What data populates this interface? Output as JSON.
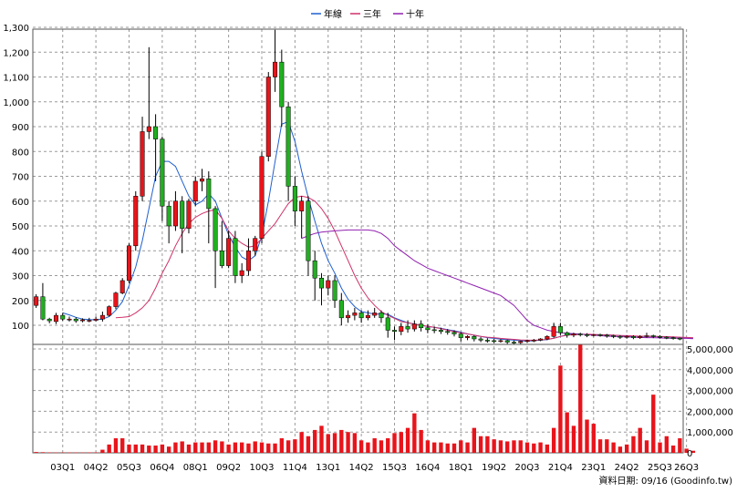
{
  "legend": [
    {
      "name": "年線",
      "color": "#1f5fd0"
    },
    {
      "name": "三年",
      "color": "#d0306a"
    },
    {
      "name": "十年",
      "color": "#9020b0"
    }
  ],
  "footer": "資料日期: 09/16  (Goodinfo.tw)",
  "colors": {
    "up": "#e8141b",
    "down": "#20b020",
    "wick": "#000000",
    "volume": "#e8141b"
  },
  "chart_data": {
    "type": "candlestick",
    "price_axis": {
      "ticks": [
        100,
        200,
        300,
        400,
        500,
        600,
        700,
        800,
        900,
        1000,
        1100,
        1200,
        1300
      ],
      "tick_labels": [
        "100",
        "200",
        "300",
        "400",
        "500",
        "600",
        "700",
        "800",
        "900",
        "1,000",
        "1,100",
        "1,200",
        "1,300"
      ]
    },
    "volume_axis": {
      "ticks": [
        0,
        1000000,
        2000000,
        3000000,
        4000000,
        5000000
      ],
      "tick_labels": [
        "0",
        "1,000,000",
        "2,000,000",
        "3,000,000",
        "4,000,000",
        "5,000,000"
      ]
    },
    "x_labels": [
      {
        "label": "03Q1",
        "index": 4
      },
      {
        "label": "04Q2",
        "index": 9
      },
      {
        "label": "05Q3",
        "index": 14
      },
      {
        "label": "06Q4",
        "index": 19
      },
      {
        "label": "08Q1",
        "index": 24
      },
      {
        "label": "09Q2",
        "index": 29
      },
      {
        "label": "10Q3",
        "index": 34
      },
      {
        "label": "11Q4",
        "index": 39
      },
      {
        "label": "13Q1",
        "index": 44
      },
      {
        "label": "14Q2",
        "index": 49
      },
      {
        "label": "15Q3",
        "index": 54
      },
      {
        "label": "16Q4",
        "index": 59
      },
      {
        "label": "18Q1",
        "index": 64
      },
      {
        "label": "19Q2",
        "index": 69
      },
      {
        "label": "20Q3",
        "index": 74
      },
      {
        "label": "21Q4",
        "index": 79
      },
      {
        "label": "23Q1",
        "index": 84
      },
      {
        "label": "24Q2",
        "index": 89
      },
      {
        "label": "25Q3",
        "index": 94
      },
      {
        "label": "26Q3",
        "index": 98
      }
    ],
    "candles": [
      [
        180,
        215,
        225,
        170
      ],
      [
        215,
        125,
        270,
        120
      ],
      [
        125,
        118,
        130,
        108
      ],
      [
        115,
        140,
        150,
        105
      ],
      [
        140,
        125,
        150,
        118
      ],
      [
        125,
        125,
        135,
        115
      ],
      [
        125,
        118,
        132,
        110
      ],
      [
        118,
        122,
        128,
        112
      ],
      [
        120,
        120,
        130,
        112
      ],
      [
        120,
        125,
        135,
        115
      ],
      [
        125,
        140,
        155,
        115
      ],
      [
        140,
        175,
        180,
        135
      ],
      [
        175,
        230,
        235,
        165
      ],
      [
        230,
        280,
        290,
        225
      ],
      [
        280,
        420,
        430,
        270
      ],
      [
        420,
        620,
        640,
        400
      ],
      [
        620,
        880,
        940,
        600
      ],
      [
        880,
        900,
        1220,
        850
      ],
      [
        900,
        850,
        950,
        680
      ],
      [
        850,
        580,
        860,
        520
      ],
      [
        580,
        500,
        600,
        430
      ],
      [
        500,
        600,
        640,
        480
      ],
      [
        600,
        490,
        620,
        390
      ],
      [
        490,
        600,
        610,
        470
      ],
      [
        600,
        680,
        700,
        580
      ],
      [
        680,
        690,
        730,
        640
      ],
      [
        690,
        570,
        720,
        430
      ],
      [
        570,
        400,
        580,
        250
      ],
      [
        400,
        340,
        520,
        330
      ],
      [
        340,
        450,
        480,
        330
      ],
      [
        450,
        300,
        480,
        270
      ],
      [
        300,
        320,
        350,
        270
      ],
      [
        320,
        400,
        450,
        300
      ],
      [
        400,
        450,
        460,
        380
      ],
      [
        450,
        780,
        800,
        430
      ],
      [
        780,
        1100,
        1120,
        760
      ],
      [
        1100,
        1160,
        1290,
        1040
      ],
      [
        1160,
        980,
        1210,
        900
      ],
      [
        980,
        660,
        1000,
        600
      ],
      [
        660,
        560,
        700,
        500
      ],
      [
        560,
        600,
        620,
        450
      ],
      [
        600,
        360,
        620,
        300
      ],
      [
        360,
        290,
        400,
        200
      ],
      [
        290,
        250,
        310,
        180
      ],
      [
        250,
        280,
        300,
        220
      ],
      [
        280,
        200,
        300,
        170
      ],
      [
        200,
        130,
        230,
        100
      ],
      [
        130,
        140,
        160,
        110
      ],
      [
        140,
        150,
        170,
        120
      ],
      [
        150,
        130,
        160,
        110
      ],
      [
        130,
        140,
        160,
        120
      ],
      [
        140,
        150,
        170,
        130
      ],
      [
        150,
        130,
        160,
        110
      ],
      [
        130,
        80,
        150,
        50
      ],
      [
        80,
        75,
        95,
        40
      ],
      [
        75,
        95,
        110,
        60
      ],
      [
        95,
        85,
        120,
        70
      ],
      [
        85,
        105,
        120,
        75
      ],
      [
        105,
        90,
        120,
        75
      ],
      [
        90,
        82,
        105,
        68
      ],
      [
        82,
        80,
        95,
        68
      ],
      [
        80,
        75,
        90,
        65
      ],
      [
        75,
        72,
        85,
        62
      ],
      [
        72,
        65,
        80,
        55
      ],
      [
        65,
        50,
        72,
        35
      ],
      [
        50,
        55,
        60,
        40
      ],
      [
        55,
        45,
        60,
        35
      ],
      [
        45,
        40,
        52,
        32
      ],
      [
        40,
        38,
        48,
        30
      ],
      [
        38,
        35,
        45,
        28
      ],
      [
        35,
        38,
        44,
        30
      ],
      [
        38,
        32,
        42,
        25
      ],
      [
        32,
        30,
        38,
        24
      ],
      [
        30,
        35,
        38,
        25
      ],
      [
        35,
        38,
        42,
        30
      ],
      [
        38,
        40,
        45,
        32
      ],
      [
        40,
        45,
        48,
        36
      ],
      [
        45,
        55,
        60,
        40
      ],
      [
        55,
        95,
        110,
        50
      ],
      [
        95,
        70,
        110,
        60
      ],
      [
        70,
        60,
        75,
        50
      ],
      [
        60,
        65,
        70,
        52
      ],
      [
        65,
        62,
        70,
        55
      ],
      [
        62,
        60,
        68,
        52
      ],
      [
        60,
        62,
        66,
        55
      ],
      [
        62,
        60,
        66,
        54
      ],
      [
        60,
        58,
        65,
        50
      ],
      [
        58,
        55,
        62,
        48
      ],
      [
        55,
        52,
        60,
        45
      ],
      [
        52,
        55,
        60,
        46
      ],
      [
        55,
        50,
        60,
        44
      ],
      [
        50,
        55,
        60,
        45
      ],
      [
        55,
        58,
        70,
        50
      ],
      [
        58,
        55,
        62,
        48
      ],
      [
        55,
        52,
        60,
        46
      ],
      [
        52,
        50,
        56,
        44
      ],
      [
        50,
        48,
        54,
        42
      ],
      [
        48,
        45,
        50,
        40
      ]
    ],
    "volumes": [
      40000,
      30000,
      20000,
      15000,
      20000,
      15000,
      15000,
      15000,
      20000,
      20000,
      150000,
      400000,
      700000,
      700000,
      400000,
      400000,
      400000,
      350000,
      350000,
      400000,
      300000,
      500000,
      550000,
      400000,
      500000,
      500000,
      500000,
      600000,
      550000,
      400000,
      500000,
      500000,
      450000,
      550000,
      500000,
      450000,
      450000,
      700000,
      600000,
      650000,
      1000000,
      800000,
      1100000,
      1300000,
      900000,
      950000,
      1100000,
      1000000,
      950000,
      600000,
      500000,
      700000,
      600000,
      700000,
      950000,
      1000000,
      1200000,
      1900000,
      1100000,
      600000,
      500000,
      500000,
      450000,
      450000,
      600000,
      500000,
      1200000,
      800000,
      800000,
      650000,
      600000,
      550000,
      600000,
      600000,
      500000,
      450000,
      500000,
      400000,
      1200000,
      4200000,
      1950000,
      1300000,
      5200000,
      1600000,
      1400000,
      650000,
      650000,
      500000,
      300000,
      400000,
      800000,
      1200000,
      600000,
      2800000,
      500000,
      800000,
      350000,
      700000,
      200000,
      100000
    ],
    "series": [
      {
        "name": "年線",
        "values": [
          null,
          null,
          null,
          null,
          150,
          142,
          132,
          125,
          123,
          122,
          125,
          135,
          160,
          195,
          260,
          335,
          440,
          570,
          700,
          760,
          760,
          740,
          680,
          620,
          585,
          600,
          630,
          600,
          530,
          465,
          415,
          375,
          360,
          380,
          460,
          600,
          760,
          910,
          920,
          840,
          720,
          615,
          520,
          430,
          360,
          310,
          250,
          205,
          175,
          155,
          150,
          145,
          145,
          145,
          130,
          120,
          110,
          105,
          100,
          95,
          92,
          88,
          82,
          78,
          72,
          65,
          60,
          55,
          50,
          47,
          44,
          42,
          40,
          38,
          36,
          38,
          40,
          42,
          48,
          55,
          62,
          65,
          64,
          63,
          62,
          62,
          61,
          60,
          58,
          57,
          56,
          55,
          55,
          55,
          54,
          53,
          52,
          51,
          49,
          47
        ]
      },
      {
        "name": "三年",
        "values": [
          null,
          null,
          null,
          null,
          null,
          null,
          null,
          null,
          null,
          null,
          null,
          null,
          130,
          132,
          135,
          150,
          170,
          200,
          250,
          310,
          360,
          420,
          470,
          510,
          535,
          550,
          560,
          565,
          530,
          480,
          450,
          430,
          415,
          420,
          450,
          480,
          510,
          550,
          590,
          615,
          620,
          615,
          600,
          570,
          530,
          480,
          420,
          360,
          300,
          250,
          210,
          180,
          155,
          140,
          128,
          115,
          110,
          105,
          100,
          96,
          92,
          86,
          80,
          75,
          70,
          65,
          60,
          55,
          52,
          50,
          47,
          45,
          43,
          41,
          40,
          40,
          41,
          43,
          47,
          55,
          60,
          62,
          63,
          64,
          63,
          62,
          61,
          60,
          59,
          58,
          57,
          56,
          56,
          55,
          55,
          54,
          53,
          52,
          51,
          50
        ]
      },
      {
        "name": "十年",
        "values": [
          null,
          null,
          null,
          null,
          null,
          null,
          null,
          null,
          null,
          null,
          null,
          null,
          null,
          null,
          null,
          null,
          null,
          null,
          null,
          null,
          null,
          null,
          null,
          null,
          null,
          null,
          null,
          null,
          null,
          null,
          null,
          null,
          null,
          null,
          null,
          null,
          null,
          null,
          null,
          null,
          450,
          460,
          470,
          475,
          478,
          480,
          482,
          484,
          484,
          484,
          484,
          480,
          470,
          450,
          420,
          400,
          380,
          360,
          345,
          330,
          320,
          310,
          300,
          290,
          280,
          270,
          260,
          250,
          240,
          230,
          220,
          200,
          180,
          150,
          120,
          100,
          90,
          80,
          75,
          70,
          68,
          66,
          64,
          62,
          60,
          58,
          56,
          55,
          54,
          53,
          52,
          51,
          50,
          50,
          49,
          48,
          48,
          47,
          47,
          46
        ]
      }
    ]
  }
}
